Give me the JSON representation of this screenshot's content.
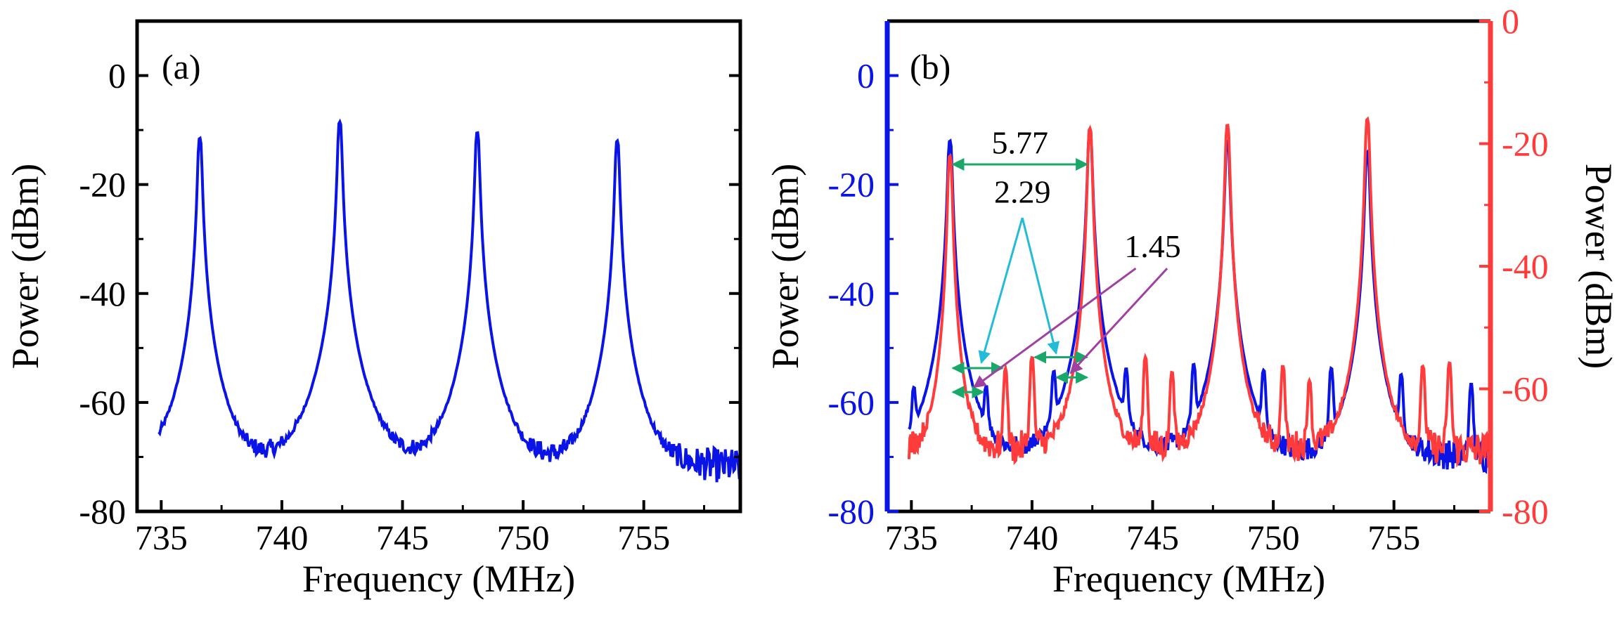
{
  "colors": {
    "blue": "#0a14e6",
    "red": "#ff3b3b",
    "black": "#000000",
    "green": "#1aa86a",
    "cyan": "#22bcd8",
    "purple": "#a040a0"
  },
  "chart_data": [
    {
      "id": "a",
      "type": "line",
      "panel_label": "(a)",
      "xlabel": "Frequency (MHz)",
      "ylabel": "Power (dBm)",
      "xlim": [
        734,
        759
      ],
      "ylim": [
        -80,
        10
      ],
      "xticks": [
        735,
        740,
        745,
        750,
        755
      ],
      "yticks": [
        0,
        -20,
        -40,
        -60,
        -80
      ],
      "xtick_labels": [
        "735",
        "740",
        "745",
        "750",
        "755"
      ],
      "ytick_labels": [
        "0",
        "-20",
        "-40",
        "-60",
        "-80"
      ],
      "series": [
        {
          "name": "spectrum-blue",
          "color": "#0a14e6",
          "baseline": -72,
          "peaks": [
            {
              "x": 736.6,
              "y": -11.5
            },
            {
              "x": 742.4,
              "y": -8.5
            },
            {
              "x": 748.1,
              "y": -10.5
            },
            {
              "x": 753.9,
              "y": -12
            }
          ]
        }
      ]
    },
    {
      "id": "b",
      "type": "line",
      "panel_label": "(b)",
      "xlabel": "Frequency (MHz)",
      "ylabel_left": "Power (dBm)",
      "ylabel_right": "Power (dBm)",
      "xlim": [
        734,
        759
      ],
      "ylim_left": [
        -80,
        10
      ],
      "ylim_right": [
        -80,
        0
      ],
      "xticks": [
        735,
        740,
        745,
        750,
        755
      ],
      "yticks_left": [
        0,
        -20,
        -40,
        -60,
        -80
      ],
      "yticks_right": [
        0,
        -20,
        -40,
        -60,
        -80
      ],
      "xtick_labels": [
        "735",
        "740",
        "745",
        "750",
        "755"
      ],
      "ytick_labels_left": [
        "0",
        "-20",
        "-40",
        "-60",
        "-80"
      ],
      "ytick_labels_right": [
        "0",
        "-20",
        "-40",
        "-60",
        "-80"
      ],
      "series": [
        {
          "name": "spectrum-blue",
          "axis": "left",
          "color": "#0a14e6",
          "baseline": -70,
          "peaks": [
            {
              "x": 735.1,
              "y": -58.5
            },
            {
              "x": 736.6,
              "y": -12
            },
            {
              "x": 738.1,
              "y": -58
            },
            {
              "x": 740.9,
              "y": -55
            },
            {
              "x": 742.4,
              "y": -10
            },
            {
              "x": 743.9,
              "y": -54.5
            },
            {
              "x": 746.7,
              "y": -53.5
            },
            {
              "x": 748.1,
              "y": -12
            },
            {
              "x": 749.6,
              "y": -54.5
            },
            {
              "x": 752.4,
              "y": -54
            },
            {
              "x": 753.9,
              "y": -14
            },
            {
              "x": 755.3,
              "y": -55.5
            },
            {
              "x": 758.2,
              "y": -57
            }
          ]
        },
        {
          "name": "spectrum-red",
          "axis": "right",
          "color": "#ff3b3b",
          "baseline": -70,
          "peaks": [
            {
              "x": 736.6,
              "y": -22
            },
            {
              "x": 738.9,
              "y": -57
            },
            {
              "x": 740.0,
              "y": -55
            },
            {
              "x": 742.4,
              "y": -17.5
            },
            {
              "x": 744.7,
              "y": -55
            },
            {
              "x": 745.8,
              "y": -57.5
            },
            {
              "x": 748.1,
              "y": -17
            },
            {
              "x": 750.4,
              "y": -56.5
            },
            {
              "x": 751.5,
              "y": -59
            },
            {
              "x": 753.9,
              "y": -16
            },
            {
              "x": 756.2,
              "y": -56.5
            },
            {
              "x": 757.3,
              "y": -56
            }
          ]
        }
      ],
      "annotations": [
        {
          "text": "5.77",
          "x": 739.5,
          "y": -14.3,
          "color": "#000000"
        },
        {
          "text": "2.29",
          "x": 739.6,
          "y": -23.3,
          "color": "#000000"
        },
        {
          "text": "1.45",
          "x": 745.0,
          "y": -33.3,
          "color": "#000000"
        }
      ],
      "spacing_arrows": [
        {
          "x1": 736.6,
          "x2": 742.4,
          "y": -16.3,
          "color": "#1aa86a"
        },
        {
          "x1": 736.6,
          "x2": 738.9,
          "y": -53.7,
          "color": "#1aa86a"
        },
        {
          "x1": 740.0,
          "x2": 742.4,
          "y": -51.7,
          "color": "#1aa86a"
        },
        {
          "x1": 736.6,
          "x2": 738.1,
          "y": -58.1,
          "color": "#1aa86a"
        },
        {
          "x1": 740.9,
          "x2": 742.4,
          "y": -55.4,
          "color": "#1aa86a"
        }
      ],
      "pointer_arrows": [
        {
          "from": [
            739.6,
            -26.1
          ],
          "to": [
            737.9,
            -52.7
          ],
          "color": "#22bcd8"
        },
        {
          "from": [
            739.6,
            -26.1
          ],
          "to": [
            741.0,
            -51.0
          ],
          "color": "#22bcd8"
        },
        {
          "from": [
            744.3,
            -35.4
          ],
          "to": [
            737.6,
            -57.2
          ],
          "color": "#a040a0"
        },
        {
          "from": [
            745.6,
            -35.4
          ],
          "to": [
            741.6,
            -54.6
          ],
          "color": "#a040a0"
        }
      ]
    }
  ]
}
